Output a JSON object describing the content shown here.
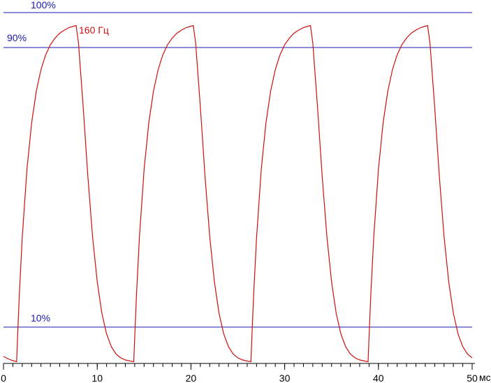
{
  "chart_data": {
    "type": "line",
    "annotation": "160 Гц",
    "x_unit": "мс",
    "reference_lines": [
      {
        "value": 100,
        "label": "100%"
      },
      {
        "value": 90,
        "label": "90%"
      },
      {
        "value": 10,
        "label": "10%"
      }
    ],
    "reference_color": "#1a1ab4",
    "xlim": [
      0,
      50
    ],
    "ylim": [
      0,
      100
    ],
    "xticks": [
      0,
      10,
      20,
      30,
      40,
      50
    ],
    "xminorticks": [
      0,
      1,
      2,
      3,
      4,
      5,
      6,
      7,
      8,
      9,
      10,
      11,
      12,
      13,
      14,
      15,
      16,
      17,
      18,
      19,
      20,
      21,
      22,
      23,
      24,
      25,
      26,
      27,
      28,
      29,
      30,
      31,
      32,
      33,
      34,
      35,
      36,
      37,
      38,
      39,
      40,
      41,
      42,
      43,
      44,
      45,
      46,
      47,
      48,
      49,
      50
    ],
    "series": [
      {
        "color": "#cc1010",
        "x": [
          0,
          0.5,
          1.0,
          1.4,
          1.5,
          1.7,
          2.0,
          2.5,
          3.0,
          3.5,
          4.0,
          4.5,
          5.0,
          5.5,
          6.0,
          6.5,
          7.0,
          7.5,
          7.75,
          8.0,
          8.5,
          9.0,
          9.5,
          10.0,
          10.5,
          11.0,
          11.5,
          12.0,
          12.5,
          13.0,
          13.5,
          13.9,
          14.0,
          14.2,
          14.5,
          15.0,
          15.5,
          16.0,
          16.5,
          17.0,
          17.5,
          18.0,
          18.5,
          19.0,
          19.5,
          20.0,
          20.25,
          20.5,
          21.0,
          21.5,
          22.0,
          22.5,
          23.0,
          23.5,
          24.0,
          24.5,
          25.0,
          25.5,
          26.0,
          26.4,
          26.5,
          26.7,
          27.0,
          27.5,
          28.0,
          28.5,
          29.0,
          29.5,
          30.0,
          30.5,
          31.0,
          31.5,
          32.0,
          32.5,
          32.75,
          33.0,
          33.5,
          34.0,
          34.5,
          35.0,
          35.5,
          36.0,
          36.5,
          37.0,
          37.5,
          38.0,
          38.5,
          38.9,
          39.0,
          39.2,
          39.5,
          40.0,
          40.5,
          41.0,
          41.5,
          42.0,
          42.5,
          43.0,
          43.5,
          44.0,
          44.5,
          45.0,
          45.25,
          45.5,
          46.0,
          46.5,
          47.0,
          47.5,
          48.0,
          48.5,
          49.0,
          49.5,
          50.0
        ],
        "values": [
          1.6,
          0.9,
          0.4,
          0.1,
          7.1,
          19.9,
          35.6,
          55.1,
          68.4,
          77.5,
          83.7,
          87.9,
          90.8,
          92.7,
          94.1,
          95.0,
          95.7,
          96.1,
          96.3,
          91.3,
          73.1,
          53.2,
          36.0,
          23.0,
          13.9,
          8.0,
          4.4,
          2.3,
          1.2,
          0.6,
          0.3,
          0.1,
          7.1,
          19.9,
          35.6,
          55.1,
          68.4,
          77.5,
          83.7,
          87.9,
          90.8,
          92.7,
          94.1,
          95.0,
          95.7,
          96.1,
          96.3,
          91.3,
          73.1,
          53.2,
          36.0,
          23.0,
          13.9,
          8.0,
          4.4,
          2.3,
          1.2,
          0.6,
          0.3,
          0.1,
          7.1,
          19.9,
          35.6,
          55.1,
          68.4,
          77.5,
          83.7,
          87.9,
          90.8,
          92.7,
          94.1,
          95.0,
          95.7,
          96.1,
          96.3,
          91.3,
          73.1,
          53.2,
          36.0,
          23.0,
          13.9,
          8.0,
          4.4,
          2.3,
          1.2,
          0.6,
          0.3,
          0.1,
          7.1,
          19.9,
          35.6,
          55.1,
          68.4,
          77.5,
          83.7,
          87.9,
          90.8,
          92.7,
          94.1,
          95.0,
          95.7,
          96.1,
          96.3,
          91.3,
          73.1,
          53.2,
          36.0,
          23.0,
          13.9,
          8.0,
          4.4,
          2.3,
          1.2
        ]
      }
    ]
  }
}
